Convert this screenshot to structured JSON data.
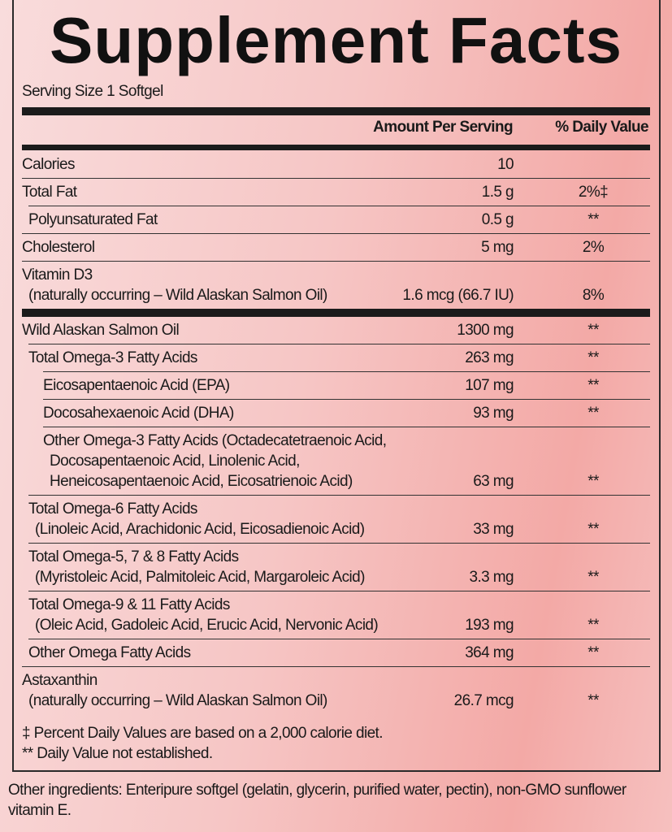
{
  "title": "Supplement Facts",
  "serving_size": "Serving Size 1 Softgel",
  "header": {
    "amount": "Amount Per Serving",
    "dv": "% Daily Value"
  },
  "rows": [
    {
      "name": "Calories",
      "amount": "10",
      "dv": "",
      "level": 0
    },
    {
      "name": "Total Fat",
      "amount": "1.5 g",
      "dv": "2%‡",
      "level": 0
    },
    {
      "name": "Polyunsaturated Fat",
      "amount": "0.5 g",
      "dv": "**",
      "level": 1
    },
    {
      "name": "Cholesterol",
      "amount": "5 mg",
      "dv": "2%",
      "level": 0
    },
    {
      "name": "Vitamin D3",
      "sub": [
        "(naturally occurring – Wild Alaskan Salmon Oil)"
      ],
      "amount": "1.6 mcg (66.7 IU)",
      "dv": "8%",
      "level": 0
    },
    {
      "name": "Wild Alaskan Salmon Oil",
      "amount": "1300 mg",
      "dv": "**",
      "level": 0,
      "thick": true
    },
    {
      "name": "Total Omega-3 Fatty Acids",
      "amount": "263 mg",
      "dv": "**",
      "level": 1
    },
    {
      "name": "Eicosapentaenoic Acid (EPA)",
      "amount": "107 mg",
      "dv": "**",
      "level": 2
    },
    {
      "name": "Docosahexaenoic Acid (DHA)",
      "amount": "93 mg",
      "dv": "**",
      "level": 2
    },
    {
      "name": "Other Omega-3 Fatty Acids (Octadecatetraenoic Acid,",
      "sub": [
        "Docosapentaenoic Acid, Linolenic Acid,",
        "Heneicosapentaenoic Acid, Eicosatrienoic Acid)"
      ],
      "amount": "63 mg",
      "dv": "**",
      "level": 2
    },
    {
      "name": "Total Omega-6 Fatty Acids",
      "sub": [
        "(Linoleic Acid, Arachidonic Acid, Eicosadienoic Acid)"
      ],
      "amount": "33 mg",
      "dv": "**",
      "level": 1
    },
    {
      "name": "Total Omega-5, 7 & 8 Fatty Acids",
      "sub": [
        "(Myristoleic Acid, Palmitoleic Acid, Margaroleic Acid)"
      ],
      "amount": "3.3 mg",
      "dv": "**",
      "level": 1
    },
    {
      "name": "Total Omega-9 & 11 Fatty Acids",
      "sub": [
        "(Oleic Acid, Gadoleic Acid, Erucic Acid, Nervonic Acid)"
      ],
      "amount": "193 mg",
      "dv": "**",
      "level": 1
    },
    {
      "name": "Other Omega Fatty Acids",
      "amount": "364 mg",
      "dv": "**",
      "level": 1
    },
    {
      "name": "Astaxanthin",
      "sub": [
        "(naturally occurring – Wild Alaskan Salmon Oil)"
      ],
      "amount": "26.7 mcg",
      "dv": "**",
      "level": 0
    }
  ],
  "footnotes": [
    "‡ Percent Daily Values are based on a 2,000 calorie diet.",
    "** Daily Value not established."
  ],
  "other_ingredients": "Other ingredients: Enteripure softgel (gelatin, glycerin, purified water, pectin), non-GMO sunflower vitamin E."
}
